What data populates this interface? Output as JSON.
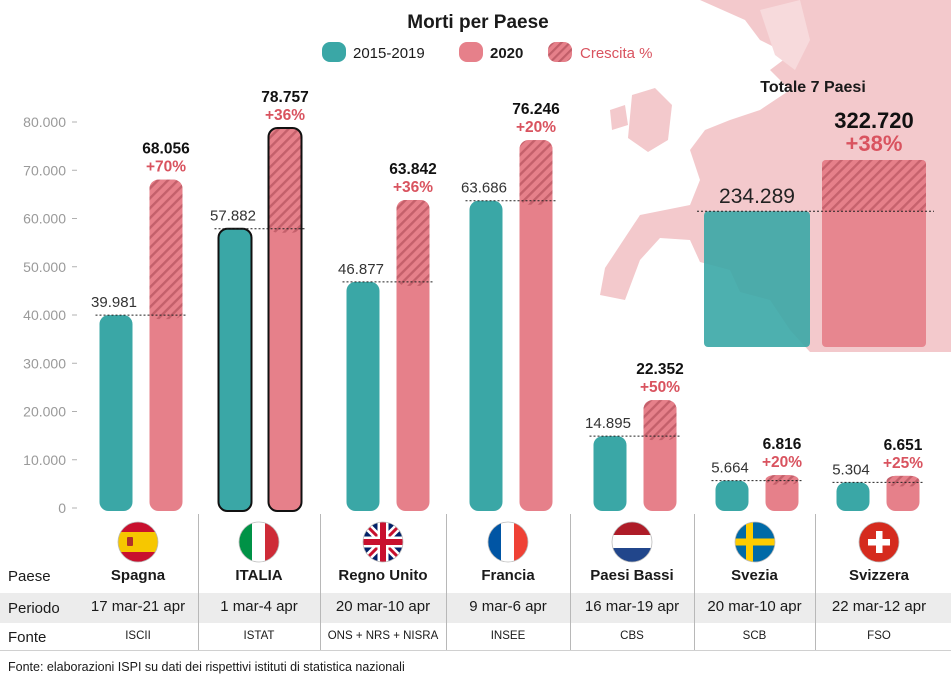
{
  "colors": {
    "baseline": "#3aa7a6",
    "year2020": "#e6808a",
    "growth_text": "#d9535f",
    "map_land": "#f2c6c9"
  },
  "chart_data": {
    "type": "bar",
    "title": "Morti per Paese",
    "legend": {
      "placement": "top-center",
      "entries": [
        {
          "key": "baseline",
          "label": "2015-2019",
          "bold": false
        },
        {
          "key": "year2020",
          "label": "2020",
          "bold": true
        },
        {
          "key": "growth",
          "label": "Crescita %",
          "bold": false
        }
      ]
    },
    "ylim": [
      0,
      80000
    ],
    "yticks": [
      {
        "value": 0,
        "label": "0"
      },
      {
        "value": 10000,
        "label": "10.000"
      },
      {
        "value": 20000,
        "label": "20.000"
      },
      {
        "value": 30000,
        "label": "30.000"
      },
      {
        "value": 40000,
        "label": "40.000"
      },
      {
        "value": 50000,
        "label": "50.000"
      },
      {
        "value": 60000,
        "label": "60.000"
      },
      {
        "value": 70000,
        "label": "70.000"
      },
      {
        "value": 80000,
        "label": "80.000"
      }
    ],
    "categories": [
      {
        "name": "Spagna",
        "baseline": 39981,
        "baseline_label": "39.981",
        "value2020": 68056,
        "value2020_label": "68.056",
        "growth": "+70%",
        "highlight": false
      },
      {
        "name": "ITALIA",
        "baseline": 57882,
        "baseline_label": "57.882",
        "value2020": 78757,
        "value2020_label": "78.757",
        "growth": "+36%",
        "highlight": true
      },
      {
        "name": "Regno Unito",
        "baseline": 46877,
        "baseline_label": "46.877",
        "value2020": 63842,
        "value2020_label": "63.842",
        "growth": "+36%",
        "highlight": false
      },
      {
        "name": "Francia",
        "baseline": 63686,
        "baseline_label": "63.686",
        "value2020": 76246,
        "value2020_label": "76.246",
        "growth": "+20%",
        "highlight": false
      },
      {
        "name": "Paesi Bassi",
        "baseline": 14895,
        "baseline_label": "14.895",
        "value2020": 22352,
        "value2020_label": "22.352",
        "growth": "+50%",
        "highlight": false
      },
      {
        "name": "Svezia",
        "baseline": 5664,
        "baseline_label": "5.664",
        "value2020": 6816,
        "value2020_label": "6.816",
        "growth": "+20%",
        "highlight": false
      },
      {
        "name": "Svizzera",
        "baseline": 5304,
        "baseline_label": "5.304",
        "value2020": 6651,
        "value2020_label": "6.651",
        "growth": "+25%",
        "highlight": false
      }
    ],
    "total": {
      "title": "Totale 7 Paesi",
      "baseline": 234289,
      "baseline_label": "234.289",
      "value2020": 322720,
      "value2020_label": "322.720",
      "growth": "+38%"
    }
  },
  "table": {
    "row_labels": {
      "paese": "Paese",
      "periodo": "Periodo",
      "fonte": "Fonte"
    },
    "columns": [
      {
        "flag": "spain-flag-icon",
        "country": "Spagna",
        "period": "17 mar-21 apr",
        "source": "ISCII"
      },
      {
        "flag": "italy-flag-icon",
        "country": "ITALIA",
        "period": "1 mar-4 apr",
        "source": "ISTAT"
      },
      {
        "flag": "uk-flag-icon",
        "country": "Regno Unito",
        "period": "20 mar-10 apr",
        "source": "ONS + NRS + NISRA"
      },
      {
        "flag": "france-flag-icon",
        "country": "Francia",
        "period": "9 mar-6 apr",
        "source": "INSEE"
      },
      {
        "flag": "netherlands-flag-icon",
        "country": "Paesi Bassi",
        "period": "16 mar-19 apr",
        "source": "CBS"
      },
      {
        "flag": "sweden-flag-icon",
        "country": "Svezia",
        "period": "20 mar-10 apr",
        "source": "SCB"
      },
      {
        "flag": "switzerland-flag-icon",
        "country": "Svizzera",
        "period": "22 mar-12 apr",
        "source": "FSO"
      }
    ]
  },
  "footnote": "Fonte: elaborazioni ISPI su dati dei rispettivi istituti di statistica nazionali"
}
